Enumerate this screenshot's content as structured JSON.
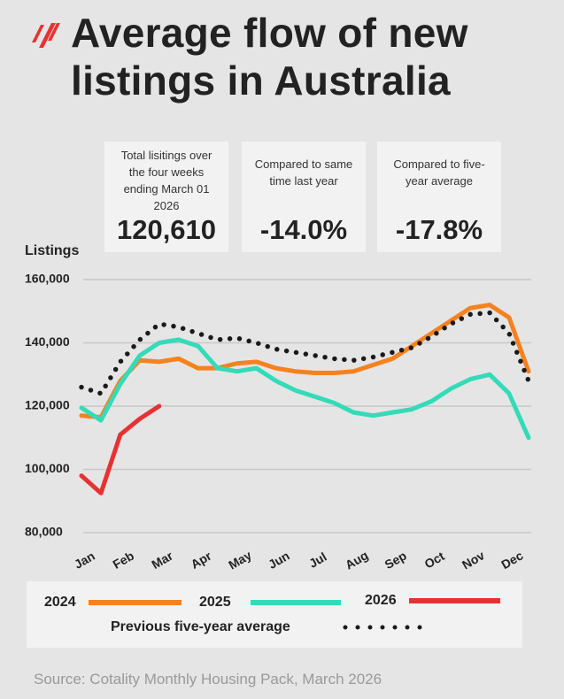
{
  "chart_data": {
    "type": "line",
    "title": "Average flow of new listings in Australia",
    "ylabel": "Listings",
    "categories": [
      "Jan",
      null,
      "Feb",
      null,
      "Mar",
      null,
      "Apr",
      null,
      "May",
      null,
      "Jun",
      null,
      "Jul",
      null,
      "Aug",
      null,
      "Sep",
      null,
      "Oct",
      null,
      "Nov",
      null,
      "Dec",
      null
    ],
    "series": [
      {
        "name": "2024",
        "color": "#f5821f",
        "style": "solid",
        "values": [
          117000,
          116500,
          128000,
          134500,
          134000,
          135000,
          132000,
          132000,
          133500,
          134000,
          132000,
          131000,
          130500,
          130500,
          131000,
          133000,
          135000,
          139000,
          143000,
          147000,
          151000,
          152000,
          148000,
          131000
        ]
      },
      {
        "name": "2025",
        "color": "#33dbb8",
        "style": "solid",
        "values": [
          119500,
          115500,
          127000,
          136000,
          140000,
          141000,
          139000,
          132000,
          131000,
          132000,
          128000,
          125000,
          123000,
          121000,
          118000,
          117000,
          118000,
          119000,
          121500,
          125500,
          128500,
          130000,
          124000,
          110000
        ]
      },
      {
        "name": "2026",
        "color": "#e63232",
        "style": "solid",
        "values": [
          98000,
          92500,
          111000,
          116000,
          120000,
          null,
          null,
          null,
          null,
          null,
          null,
          null,
          null,
          null,
          null,
          null,
          null,
          null,
          null,
          null,
          null,
          null,
          null,
          null
        ]
      },
      {
        "name": "Previous five-year average",
        "color": "#1a1a1a",
        "style": "dotted",
        "values": [
          126000,
          124000,
          134000,
          141000,
          146000,
          145000,
          143000,
          141000,
          141500,
          140000,
          138000,
          137000,
          136000,
          135000,
          134500,
          135500,
          137000,
          138500,
          142000,
          146000,
          149000,
          149500,
          143000,
          128000
        ]
      }
    ],
    "ylim": [
      80000,
      160000
    ],
    "yticks": [
      {
        "value": 80000,
        "label": "80,000"
      },
      {
        "value": 100000,
        "label": "100,000"
      },
      {
        "value": 120000,
        "label": "120,000"
      },
      {
        "value": 140000,
        "label": "140,000"
      },
      {
        "value": 160000,
        "label": "160,000"
      }
    ],
    "grid": true
  },
  "stats": [
    {
      "label": "Total lisitings over the four weeks ending March 01 2026",
      "value": "120,610"
    },
    {
      "label": "Compared to same time last year",
      "value": "-14.0%"
    },
    {
      "label": "Compared to five-year average",
      "value": "-17.8%"
    }
  ],
  "source": "Source: Cotality Monthly Housing Pack, March 2026"
}
